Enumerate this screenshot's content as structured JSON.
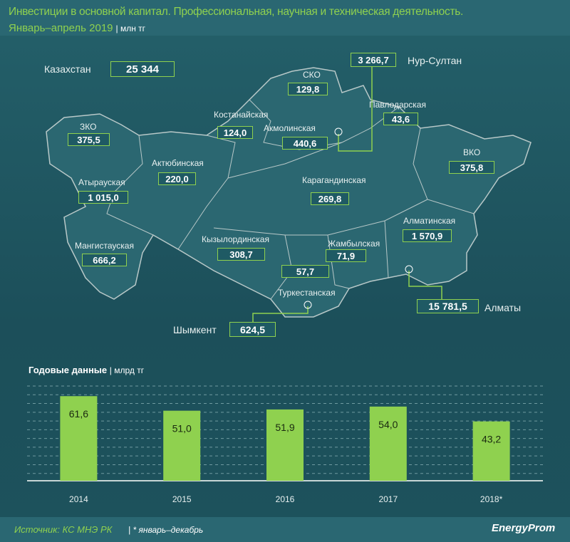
{
  "header": {
    "title": "Инвестиции в основной капитал. Профессиональная, научная и техническая деятельность.",
    "period": "Январь–апрель 2019",
    "unit": "| млн тг"
  },
  "map": {
    "total": {
      "label": "Казахстан",
      "value": "25 344"
    },
    "regions": [
      {
        "name": "СКО",
        "value": "129,8"
      },
      {
        "name": "Павлодарская",
        "value": "43,6"
      },
      {
        "name": "Костанайская",
        "value": "124,0"
      },
      {
        "name": "Акмолинская",
        "value": "440,6"
      },
      {
        "name": "ЗКО",
        "value": "375,5"
      },
      {
        "name": "ВКО",
        "value": "375,8"
      },
      {
        "name": "Актюбинская",
        "value": "220,0"
      },
      {
        "name": "Атырауская",
        "value": "1 015,0"
      },
      {
        "name": "Карагандинская",
        "value": "269,8"
      },
      {
        "name": "Алматинская",
        "value": "1 570,9"
      },
      {
        "name": "Мангистауская",
        "value": "666,2"
      },
      {
        "name": "Кызылординская",
        "value": "308,7"
      },
      {
        "name": "Жамбылская",
        "value": "71,9"
      },
      {
        "name": "Туркестанская",
        "value": "57,7"
      }
    ],
    "cities": [
      {
        "name": "Нур-Султан",
        "value": "3 266,7"
      },
      {
        "name": "Алматы",
        "value": "15 781,5"
      },
      {
        "name": "Шымкент",
        "value": "624,5"
      }
    ]
  },
  "chart_data": {
    "type": "bar",
    "title": "Годовые данные",
    "unit": "| млрд тг",
    "categories": [
      "2014",
      "2015",
      "2016",
      "2017",
      "2018*"
    ],
    "values": [
      61.6,
      51.0,
      51.9,
      54.0,
      43.2
    ],
    "value_labels": [
      "61,6",
      "51,0",
      "51,9",
      "54,0",
      "43,2"
    ],
    "ylim": [
      0,
      70
    ],
    "grid": true,
    "bar_color": "#8fd14f"
  },
  "footer": {
    "source": "Источник: КС МНЭ РК",
    "note": "| * январь–декабрь",
    "logo": "EnergyProm"
  }
}
